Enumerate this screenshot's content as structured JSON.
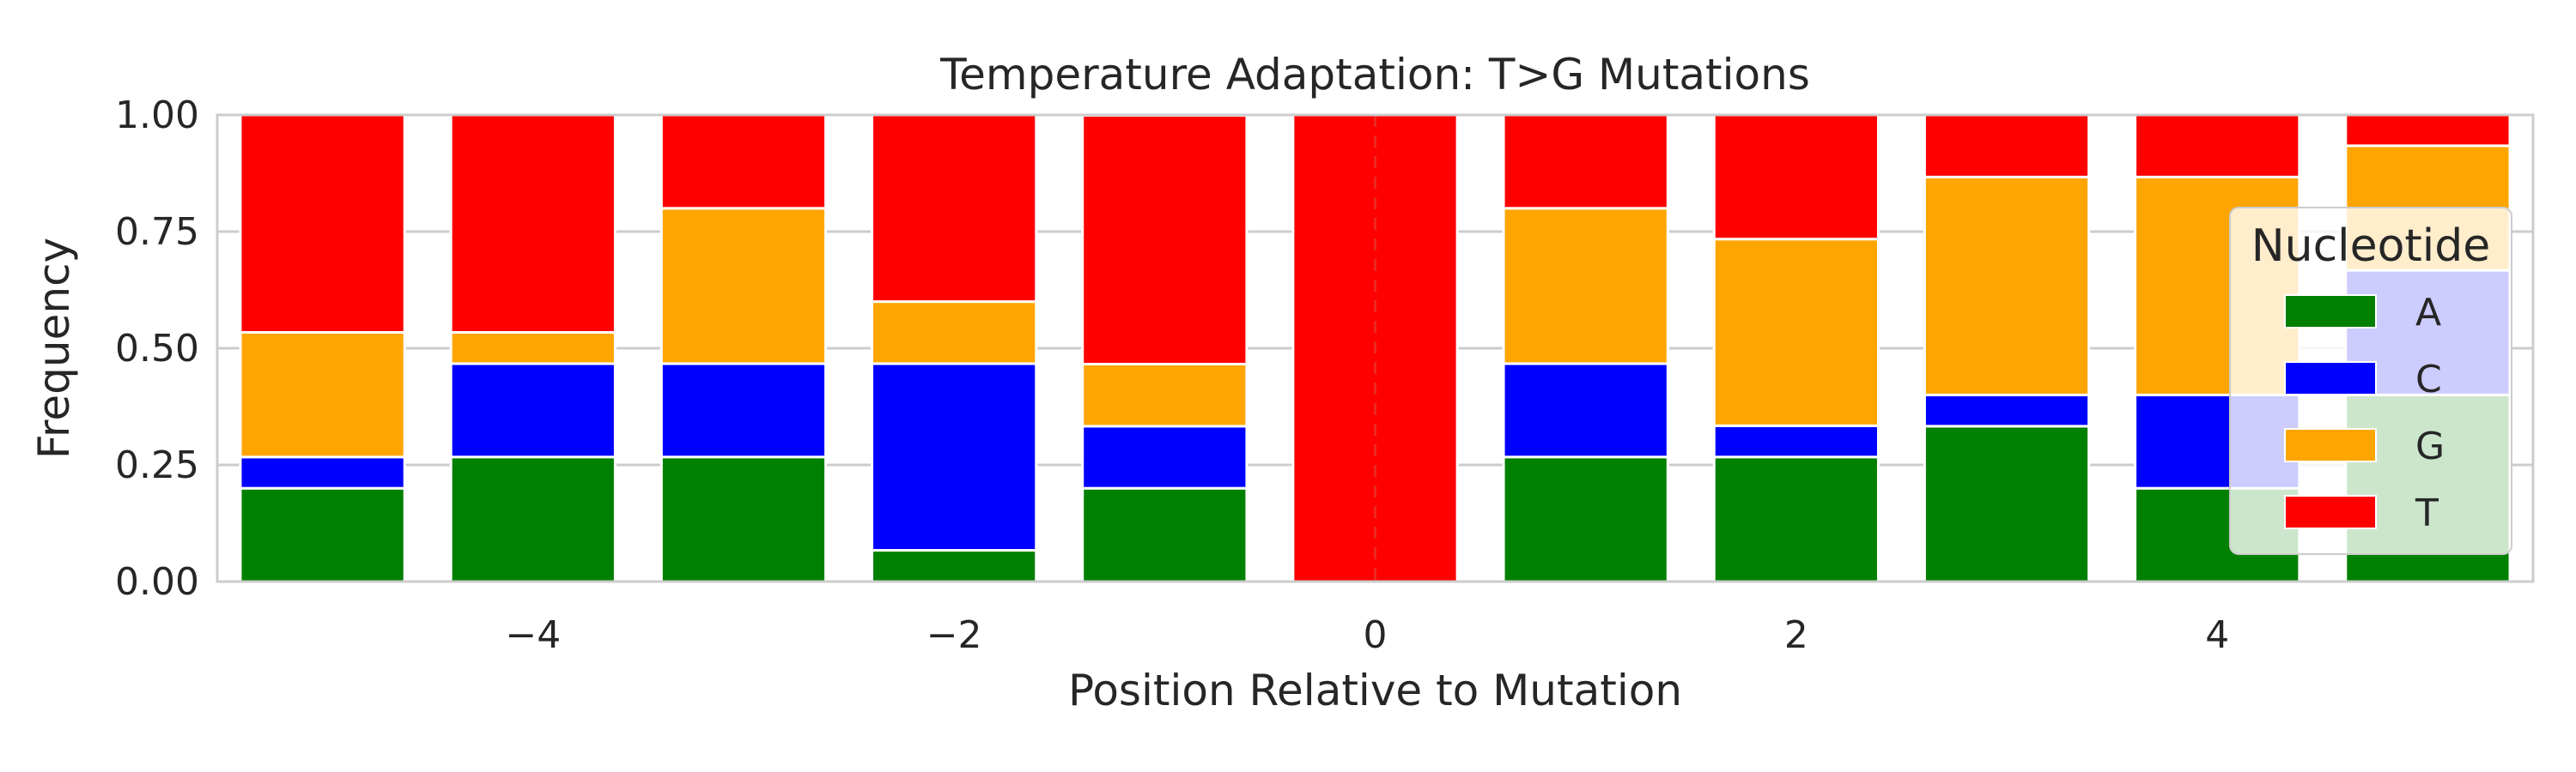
{
  "chart_data": {
    "type": "bar",
    "stacked": true,
    "title": "Temperature Adaptation: T>G Mutations",
    "xlabel": "Position Relative to Mutation",
    "ylabel": "Frequency",
    "xlim": [
      -5.5,
      5.5
    ],
    "ylim": [
      0,
      1
    ],
    "x_ticks": [
      -4,
      -2,
      0,
      2,
      4
    ],
    "x_tick_labels": [
      "−4",
      "−2",
      "0",
      "2",
      "4"
    ],
    "y_ticks": [
      0,
      0.25,
      0.5,
      0.75,
      1.0
    ],
    "y_tick_labels": [
      "0.00",
      "0.25",
      "0.50",
      "0.75",
      "1.00"
    ],
    "grid": "horizontal",
    "reference_line_x": 0,
    "x": [
      -5,
      -4,
      -3,
      -2,
      -1,
      0,
      1,
      2,
      3,
      4,
      5
    ],
    "series": [
      {
        "name": "A",
        "color": "#008000",
        "values": [
          0.2,
          0.267,
          0.267,
          0.067,
          0.2,
          0.0,
          0.267,
          0.267,
          0.333,
          0.2,
          0.4
        ]
      },
      {
        "name": "C",
        "color": "#0000ff",
        "values": [
          0.067,
          0.2,
          0.2,
          0.4,
          0.133,
          0.0,
          0.2,
          0.067,
          0.067,
          0.2,
          0.267
        ]
      },
      {
        "name": "G",
        "color": "#ffa500",
        "values": [
          0.267,
          0.067,
          0.333,
          0.133,
          0.133,
          0.0,
          0.333,
          0.4,
          0.467,
          0.467,
          0.267
        ]
      },
      {
        "name": "T",
        "color": "#ff0000",
        "values": [
          0.467,
          0.467,
          0.2,
          0.4,
          0.533,
          1.0,
          0.2,
          0.267,
          0.133,
          0.133,
          0.067
        ]
      }
    ],
    "legend": {
      "title": "Nucleotide",
      "position": "right"
    }
  }
}
